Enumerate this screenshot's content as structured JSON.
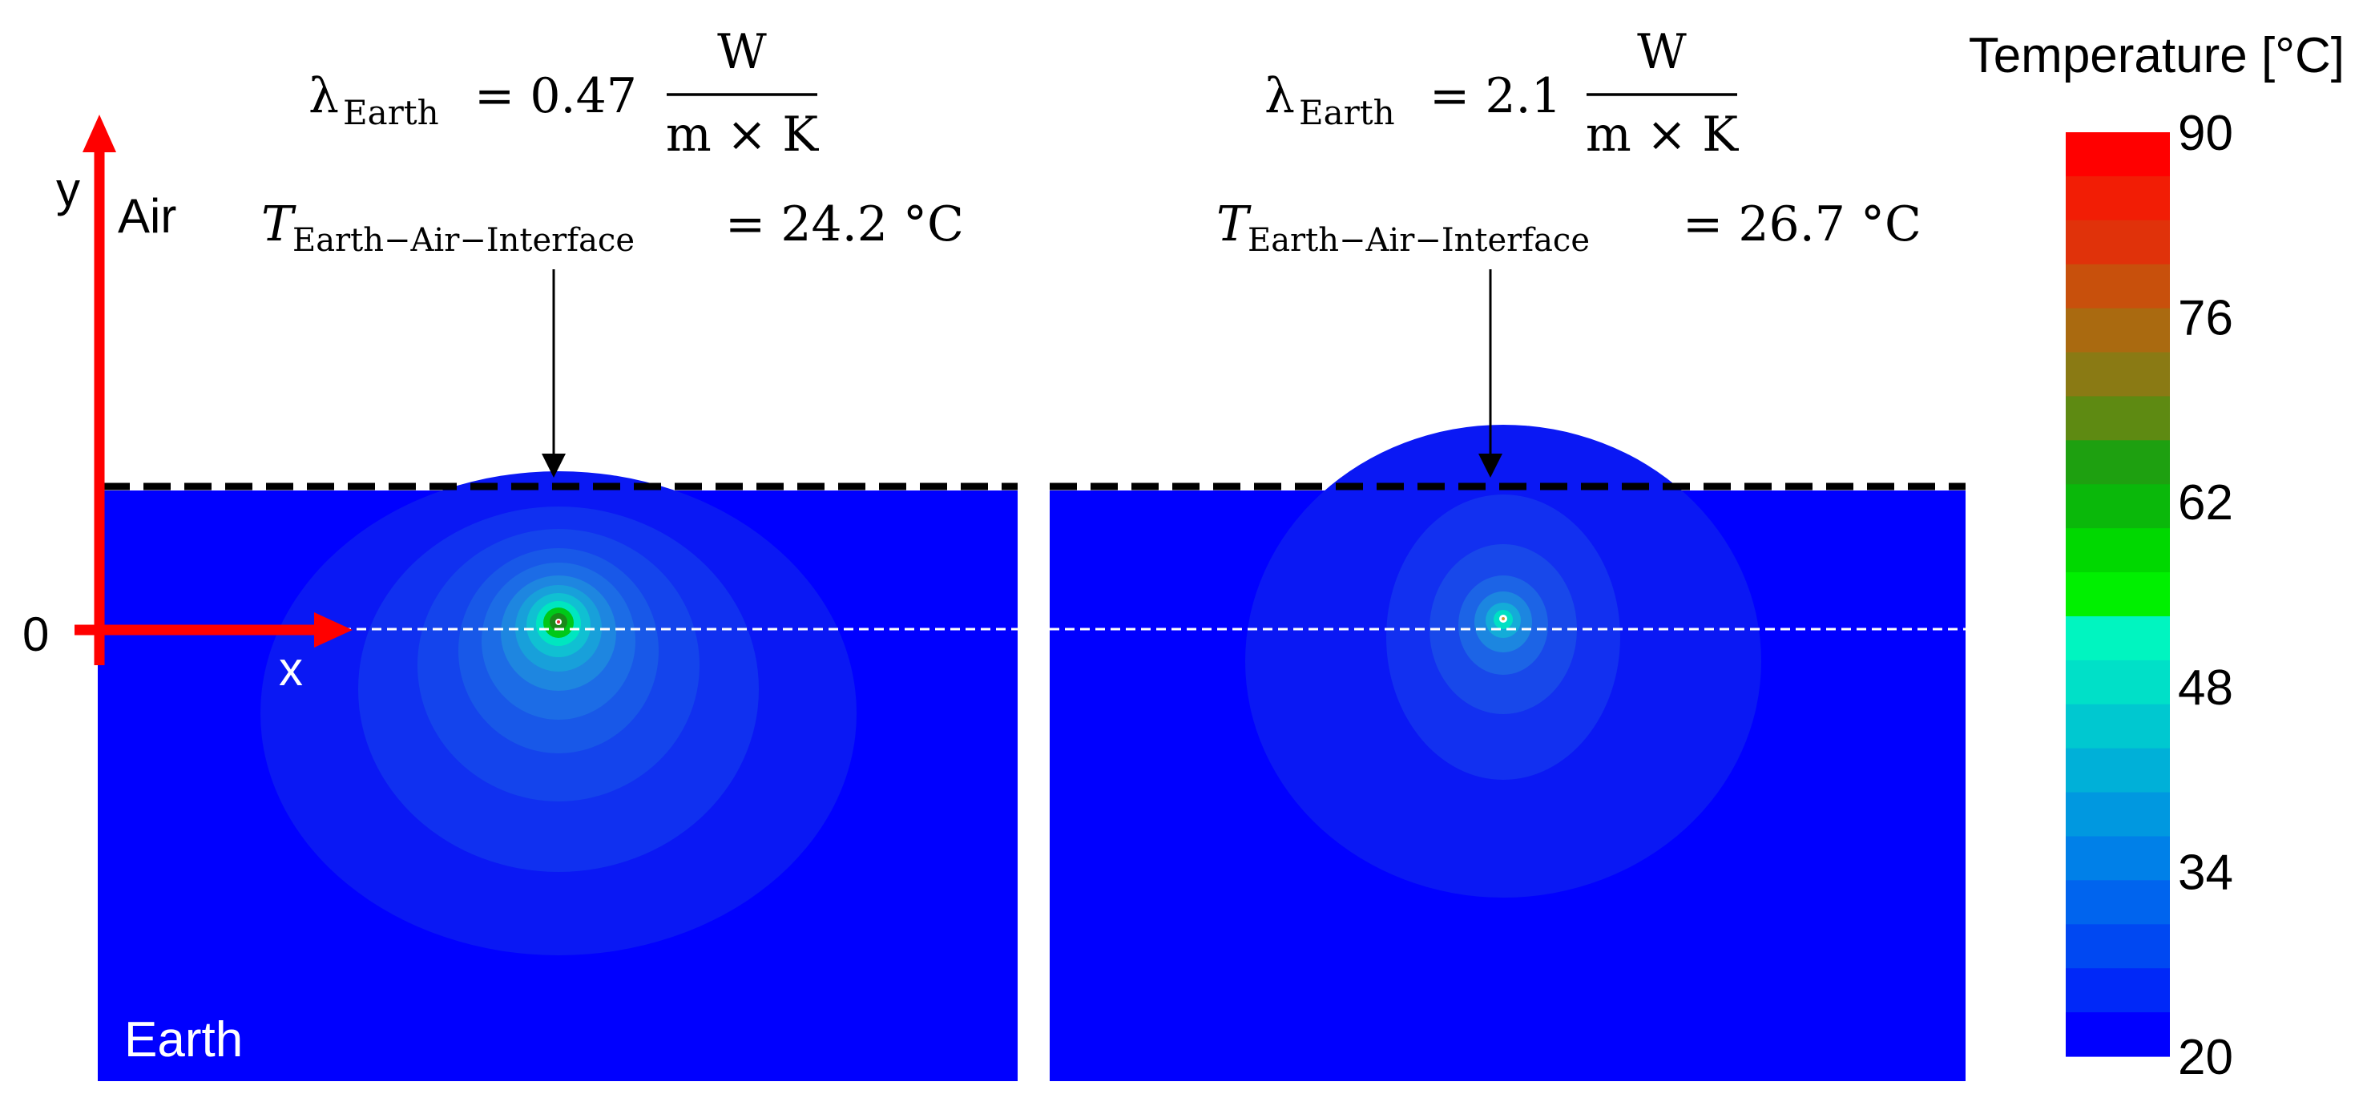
{
  "axes": {
    "y_label": "y",
    "x_label": "x",
    "origin_label": "0",
    "air_label": "Air",
    "earth_label": "Earth"
  },
  "panels": [
    {
      "lambda_symbol": "λ",
      "lambda_sub": "Earth",
      "lambda_value": "= 0.47",
      "frac_num": "W",
      "frac_den": "m × K",
      "t_symbol": "T",
      "t_sub": "Earth−Air−Interface",
      "t_value": "= 24.2 °C"
    },
    {
      "lambda_symbol": "λ",
      "lambda_sub": "Earth",
      "lambda_value": "= 2.1",
      "frac_num": "W",
      "frac_den": "m × K",
      "t_symbol": "T",
      "t_sub": "Earth−Air−Interface",
      "t_value": "= 26.7 °C"
    }
  ],
  "colorbar": {
    "title": "Temperature [°C]",
    "ticks": [
      "90",
      "76",
      "62",
      "48",
      "34",
      "20"
    ],
    "min": 20,
    "max": 90,
    "colors": [
      "#ff0000",
      "#f21d05",
      "#e0320a",
      "#c8500c",
      "#aa6a10",
      "#8a7a14",
      "#5e8a12",
      "#1ea010",
      "#0ab80a",
      "#00d800",
      "#00f000",
      "#00f5c0",
      "#00e0c8",
      "#00c8d0",
      "#00b0d8",
      "#0098e0",
      "#0080e8",
      "#0064ee",
      "#0048f2",
      "#0028f8",
      "#0000ff"
    ]
  }
}
